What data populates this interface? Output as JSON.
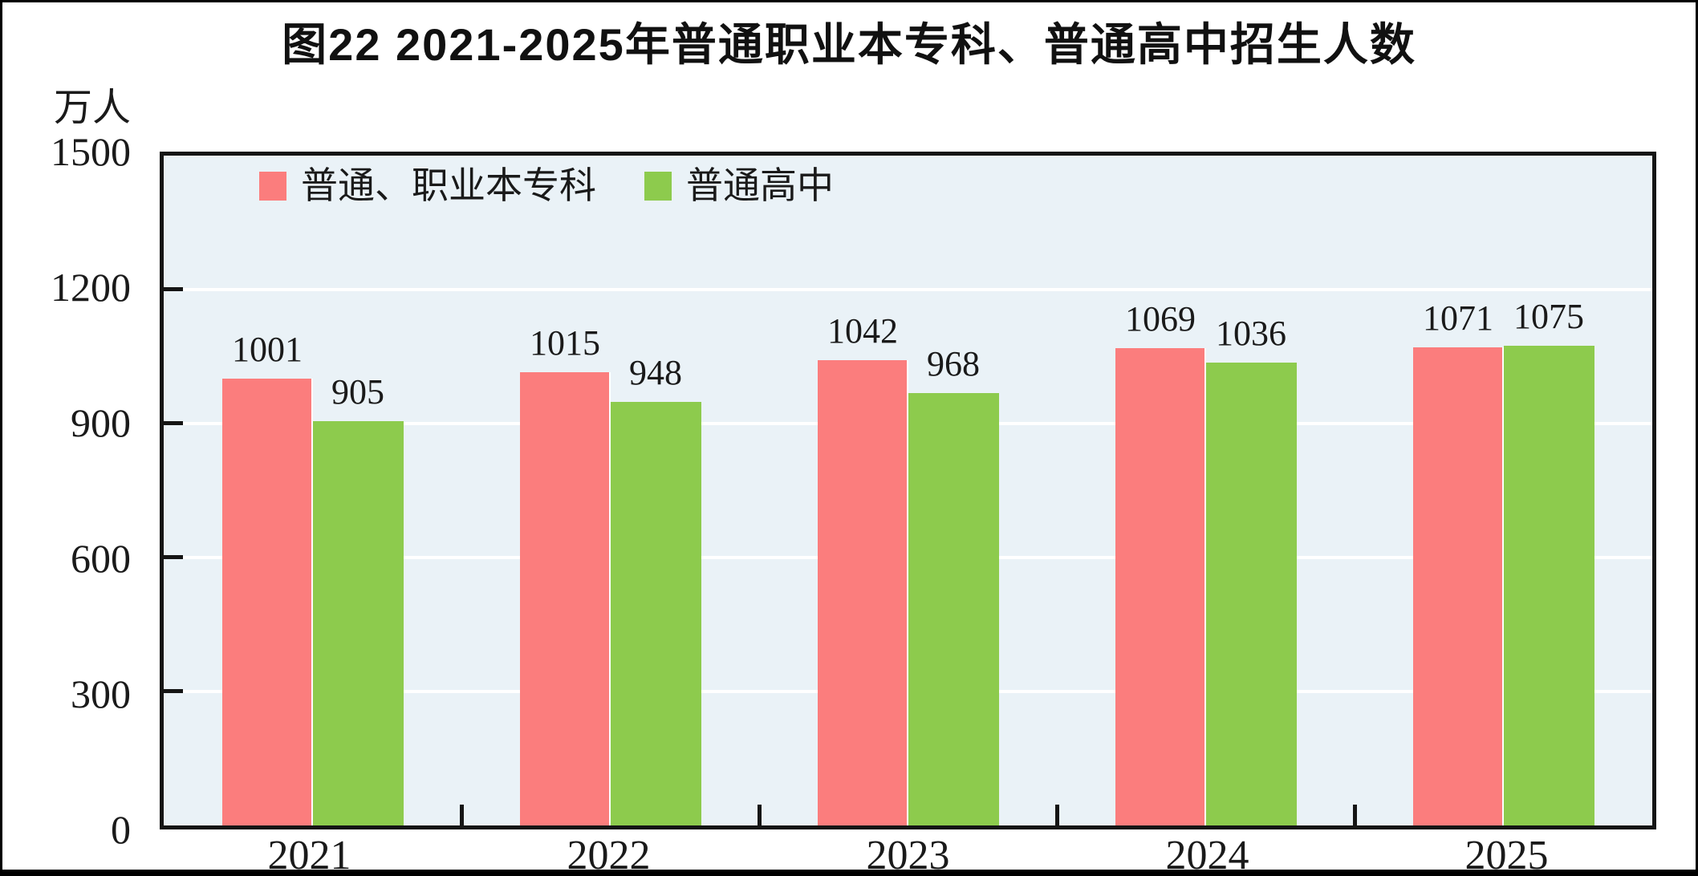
{
  "title": "图22  2021-2025年普通职业本专科、普通高中招生人数",
  "unit_label": "万人",
  "colors": {
    "series1": "#fb7d7d",
    "series2": "#8dcb4d",
    "plot_background": "#eaf2f7",
    "gridline": "#ffffff",
    "axis": "#151515"
  },
  "legend": [
    {
      "label": "普通、职业本专科",
      "color": "#fb7d7d"
    },
    {
      "label": "普通高中",
      "color": "#8dcb4d"
    }
  ],
  "chart_data": {
    "type": "bar",
    "title": "图22  2021-2025年普通职业本专科、普通高中招生人数",
    "categories": [
      "2021",
      "2022",
      "2023",
      "2024",
      "2025"
    ],
    "series": [
      {
        "name": "普通、职业本专科",
        "color": "#fb7d7d",
        "values": [
          1001,
          1015,
          1042,
          1069,
          1071
        ]
      },
      {
        "name": "普通高中",
        "color": "#8dcb4d",
        "values": [
          905,
          948,
          968,
          1036,
          1075
        ]
      }
    ],
    "xlabel": "",
    "ylabel": "万人",
    "ylim": [
      0,
      1500
    ],
    "yticks": [
      0,
      300,
      600,
      900,
      1200,
      1500
    ],
    "grid": true,
    "gridline_color": "#ffffff",
    "plot_background": "#eaf2f7",
    "legend_position": "top-left-inside",
    "data_labels": true
  }
}
